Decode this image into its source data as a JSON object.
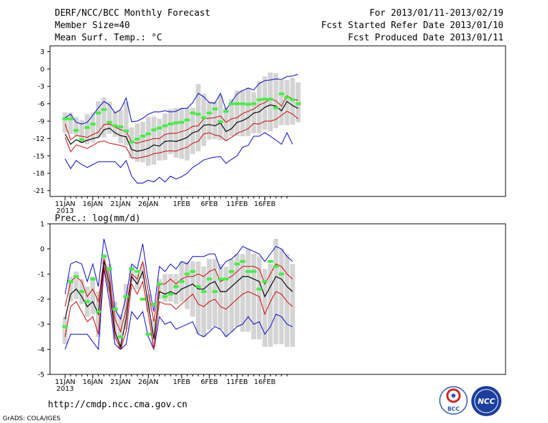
{
  "header": {
    "title": "DERF/NCC/BCC Monthly Forecast",
    "member_size": "Member Size=40",
    "panel_label": "Mean Surf. Temp.: °C",
    "period": "For 2013/01/11-2013/02/19",
    "fcst_started": "Fcst Started Refer Date 2013/01/10",
    "fcst_produced": "Fcst Produced Date 2013/01/11"
  },
  "footer": {
    "url": "http://cmdp.ncc.cma.gov.cn",
    "credit": "GrADS: COLA/IGES",
    "logo_bcc": "BCC",
    "logo_ncc": "NCC"
  },
  "colors": {
    "box": "#d4d4d4",
    "median": "#000000",
    "quartile": "#d00000",
    "envelope": "#0000cc",
    "obs": "#44ee44"
  },
  "chart_data": [
    {
      "type": "line",
      "title": "Mean Surf. Temp.: °C",
      "ylabel": "°C",
      "ylim": [
        -22,
        4
      ],
      "yticks": [
        3,
        0,
        -3,
        -6,
        -9,
        -12,
        -15,
        -18,
        -21
      ],
      "xticks": [
        {
          "day": 0,
          "label": "11JAN",
          "sub": "2013"
        },
        {
          "day": 5,
          "label": "16JAN"
        },
        {
          "day": 10,
          "label": "21JAN"
        },
        {
          "day": 15,
          "label": "26JAN"
        },
        {
          "day": 21,
          "label": "1FEB"
        },
        {
          "day": 26,
          "label": "6FEB"
        },
        {
          "day": 31,
          "label": "11FEB"
        },
        {
          "day": 36,
          "label": "16FEB"
        }
      ],
      "series": [
        {
          "name": "max",
          "values": [
            -15.5,
            -17.2,
            -15.8,
            -16.5,
            -17,
            -16.5,
            -16,
            -16,
            -16,
            -16,
            -17,
            -15.8,
            -18.5,
            -19.7,
            -19.7,
            -19.2,
            -19.5,
            -18.7,
            -19.5,
            -18.5,
            -19,
            -18.6,
            -18,
            -17,
            -16.4,
            -15.7,
            -15.4,
            -15.2,
            -15.1,
            -16.3,
            -15.6,
            -15,
            -13.5,
            -13.2,
            -11.6,
            -11.6,
            -11,
            -11.6,
            -12.3,
            -13,
            -11,
            -13
          ]
        },
        {
          "name": "q75",
          "values": [
            -11.8,
            -14.3,
            -13.1,
            -13.4,
            -13.7,
            -13.2,
            -12.6,
            -12.4,
            -12.8,
            -13,
            -13.2,
            -13.5,
            -15.3,
            -15.4,
            -15.2,
            -15,
            -14.6,
            -14.5,
            -14.2,
            -14.1,
            -14.2,
            -13.8,
            -13.5,
            -12.8,
            -12.5,
            -11.2,
            -11,
            -11.4,
            -11.6,
            -12.4,
            -11.8,
            -11.1,
            -10.7,
            -10.3,
            -9.4,
            -9.5,
            -9,
            -9,
            -8.7,
            -8,
            -7.3,
            -7.8,
            -8.6
          ]
        },
        {
          "name": "median",
          "values": [
            -11.2,
            -13,
            -12.2,
            -12.7,
            -12.3,
            -12,
            -11.8,
            -10.5,
            -10.2,
            -11,
            -11.5,
            -11.7,
            -13.9,
            -14.2,
            -14,
            -13.7,
            -13.1,
            -13.3,
            -12.5,
            -12.4,
            -12.5,
            -12.2,
            -11.8,
            -11,
            -10.7,
            -9.7,
            -9.6,
            -9.8,
            -9.3,
            -10.8,
            -10.3,
            -9.2,
            -8.9,
            -8.4,
            -7.6,
            -7.4,
            -6.6,
            -6.2,
            -6.4,
            -7.2,
            -5.6,
            -6.3,
            -6.8
          ]
        },
        {
          "name": "q25",
          "values": [
            -9.5,
            -12.2,
            -11.5,
            -11.6,
            -11.8,
            -11.3,
            -10.9,
            -9.6,
            -9.5,
            -10,
            -10.5,
            -10.7,
            -12.6,
            -12.8,
            -12.5,
            -12.3,
            -12,
            -12,
            -11.3,
            -11.1,
            -11.1,
            -10.8,
            -10.5,
            -9.9,
            -9.8,
            -8.6,
            -8.5,
            -8.4,
            -8.1,
            -9.2,
            -8.6,
            -8.4,
            -7.7,
            -7.3,
            -6.9,
            -6.2,
            -5.8,
            -5.2,
            -5.5,
            -6.4,
            -4.6,
            -5.2,
            -5.4
          ]
        },
        {
          "name": "min",
          "values": [
            -8.4,
            -7.8,
            -9.2,
            -9.5,
            -9.2,
            -8,
            -6.7,
            -5.6,
            -6.2,
            -7.6,
            -7,
            -5,
            -9.1,
            -9,
            -8.5,
            -7.8,
            -7.4,
            -7.4,
            -7.2,
            -7.4,
            -7.3,
            -6.8,
            -6.8,
            -5.8,
            -4.2,
            -4.8,
            -5.8,
            -5.9,
            -4.2,
            -7,
            -5.7,
            -4.3,
            -3.7,
            -3.3,
            -3.6,
            -2.5,
            -2,
            -1.9,
            -1.7,
            -1.8,
            -1.3,
            -1.2,
            -0.9
          ]
        },
        {
          "name": "box_low",
          "values": [
            -11,
            -11.2,
            -11.5,
            -12.8,
            -13,
            -12.7,
            -11.8,
            -11.8,
            -11.2,
            -11.7,
            -12.8,
            -13.2,
            -15.5,
            -16,
            -16.1,
            -16.7,
            -16.5,
            -15.8,
            -15.7,
            -14.7,
            -15.3,
            -15.5,
            -15.8,
            -14.7,
            -14.2,
            -13.3,
            -12.2,
            -12.1,
            -12.3,
            -12.4,
            -11.6,
            -11.6,
            -11.6,
            -11.6,
            -11.1,
            -11.1,
            -10.5,
            -10.8,
            -10.2,
            -9.7,
            -9.7,
            -9.6,
            -9.2
          ]
        },
        {
          "name": "box_high",
          "values": [
            -7.5,
            -7.5,
            -8.3,
            -8.8,
            -7.8,
            -7.5,
            -5.6,
            -4.9,
            -5.6,
            -7.3,
            -7.1,
            -5.7,
            -10.1,
            -9.4,
            -9.1,
            -8.3,
            -8.2,
            -8.6,
            -7.7,
            -6.9,
            -6.7,
            -6.7,
            -6.7,
            -6.7,
            -2.6,
            -4.3,
            -5.6,
            -5.7,
            -4.5,
            -6.7,
            -5.2,
            -3.7,
            -3.6,
            -3.2,
            -4,
            -2.1,
            -1.3,
            -0.6,
            -0.7,
            -1.9,
            -1.9,
            -1.5,
            -2.3
          ]
        },
        {
          "name": "observed",
          "values": [
            -8.6,
            -8.6,
            -10.6,
            -12.2,
            -10.1,
            -9.5,
            -7.6,
            -7,
            -9.2,
            -9.8,
            -10,
            -10.7,
            -12.6,
            -12.1,
            -11.6,
            -11.2,
            -10.5,
            -10.2,
            -9.8,
            -9.5,
            -9.3,
            -9.2,
            -8.8,
            -7.6,
            -7.8,
            -8.4,
            -7.6,
            -6.9,
            -9.1,
            -7.3,
            -6,
            -6,
            -6,
            -6.1,
            -6,
            -5.3,
            -5.2,
            -5.2,
            -6.7,
            -4.3,
            -4.9,
            -5.3,
            -6
          ]
        }
      ]
    },
    {
      "type": "line",
      "title": "Prec.: log(mm/d)",
      "ylabel": "log(mm/d)",
      "ylim": [
        -5,
        1
      ],
      "yticks": [
        1,
        0,
        -1,
        -2,
        -3,
        -4,
        -5
      ],
      "xticks": [
        {
          "day": 0,
          "label": "11JAN",
          "sub": "2013"
        },
        {
          "day": 5,
          "label": "16JAN"
        },
        {
          "day": 10,
          "label": "21JAN"
        },
        {
          "day": 15,
          "label": "26JAN"
        },
        {
          "day": 21,
          "label": "1FEB"
        },
        {
          "day": 26,
          "label": "6FEB"
        },
        {
          "day": 31,
          "label": "11FEB"
        },
        {
          "day": 36,
          "label": "16FEB"
        }
      ],
      "series": [
        {
          "name": "max",
          "values": [
            -1.8,
            -0.6,
            -0.5,
            -0.6,
            -1.3,
            -0.6,
            -1.5,
            0.4,
            -0.5,
            -2.4,
            -2.8,
            -1.9,
            -0.6,
            -0.8,
            0.2,
            -1.3,
            -2.5,
            -0.7,
            -0.9,
            -0.6,
            -0.8,
            -0.5,
            -0.6,
            -0.3,
            -0.3,
            -0.3,
            -0.2,
            -0.2,
            -0.8,
            -0.5,
            -0.4,
            -0.2,
            0.1,
            0,
            -0.1,
            -0.2,
            -0.5,
            -0.2,
            0.1,
            0,
            -0.3,
            -0.5
          ]
        },
        {
          "name": "q75",
          "values": [
            -2.3,
            -1.3,
            -1.1,
            -1.3,
            -1.9,
            -1.6,
            -2.1,
            -0.4,
            -1.1,
            -2.8,
            -3.3,
            -2.4,
            -1,
            -1.2,
            -0.5,
            -1.7,
            -2.9,
            -1.4,
            -1.4,
            -1.2,
            -1.4,
            -1.2,
            -1.1,
            -1.1,
            -1,
            -1.1,
            -0.9,
            -0.8,
            -1.3,
            -1.2,
            -1.1,
            -0.9,
            -0.7,
            -0.7,
            -0.7,
            -0.8,
            -1.4,
            -1,
            -0.6,
            -0.7,
            -1,
            -1.2
          ]
        },
        {
          "name": "median",
          "values": [
            -2.8,
            -1.8,
            -1.6,
            -1.9,
            -2.3,
            -2.1,
            -2.6,
            -0.5,
            -1.4,
            -3.3,
            -3.9,
            -2.8,
            -1.1,
            -1.4,
            -0.9,
            -2.2,
            -3.6,
            -1.7,
            -1.8,
            -1.7,
            -1.8,
            -1.6,
            -1.5,
            -1.4,
            -1.6,
            -1.6,
            -1.4,
            -1.3,
            -1.7,
            -1.7,
            -1.5,
            -1.3,
            -1.1,
            -1.1,
            -1.2,
            -1.3,
            -1.9,
            -1.5,
            -1.1,
            -1.2,
            -1.5,
            -1.7
          ]
        },
        {
          "name": "q25",
          "values": [
            -3.5,
            -2.3,
            -2.1,
            -2.5,
            -2.9,
            -2.7,
            -3.4,
            -0.7,
            -1.7,
            -3.5,
            -4,
            -3.3,
            -1.4,
            -1.8,
            -1.3,
            -2.6,
            -4,
            -2.1,
            -2.2,
            -2.2,
            -2.4,
            -2.2,
            -2,
            -1.8,
            -2.2,
            -2.3,
            -2.1,
            -2,
            -2.3,
            -2.4,
            -2.2,
            -2,
            -1.8,
            -1.7,
            -1.8,
            -1.9,
            -2.6,
            -2.1,
            -1.7,
            -1.8,
            -2.1,
            -2.3
          ]
        },
        {
          "name": "min",
          "values": [
            -4,
            -3.4,
            -3.4,
            -3.4,
            -3.4,
            -3.7,
            -4,
            -0.8,
            -2.1,
            -3.8,
            -4,
            -3.8,
            -2.5,
            -2.8,
            -2.5,
            -3.5,
            -4,
            -2.7,
            -3,
            -2.9,
            -3.2,
            -3.1,
            -3,
            -2.9,
            -3.4,
            -3.5,
            -3.3,
            -3.1,
            -3.2,
            -3.5,
            -3.3,
            -3.1,
            -3,
            -2.7,
            -3,
            -2.9,
            -3.4,
            -3.1,
            -2.6,
            -2.7,
            -3,
            -3.1
          ]
        },
        {
          "name": "box_low",
          "values": [
            -3.8,
            -2.1,
            -2,
            -2.2,
            -2.7,
            -2.6,
            -3.5,
            -0.6,
            -1.7,
            -3.6,
            -4,
            -3.2,
            -1.3,
            -1.6,
            -1.2,
            -2.5,
            -3.9,
            -2,
            -2.1,
            -2.1,
            -2.2,
            -2.1,
            -2.4,
            -2.7,
            -3.4,
            -3.5,
            -3.2,
            -3.1,
            -3.2,
            -3.5,
            -3.3,
            -3.1,
            -3.3,
            -3.3,
            -3.6,
            -3.6,
            -3.9,
            -3.9,
            -3.8,
            -3.8,
            -3.9,
            -3.9
          ]
        },
        {
          "name": "box_high",
          "values": [
            -2.7,
            -1.1,
            -0.9,
            -1.2,
            -1.5,
            -1.1,
            -1.7,
            -0.2,
            -0.6,
            -2.1,
            -2.6,
            -1.4,
            -0.7,
            -1,
            -0.6,
            -1.8,
            -2.8,
            -1.2,
            -1,
            -1,
            -1,
            -0.5,
            -0.5,
            -0.5,
            -0.5,
            -0.7,
            -0.4,
            -0.4,
            -0.6,
            -0.7,
            -0.4,
            -0.2,
            -0.2,
            0,
            -0.2,
            -0.3,
            -0.8,
            -0.6,
            0.4,
            0,
            -0.2,
            -0.6
          ]
        },
        {
          "name": "observed",
          "values": [
            -3.1,
            -1.3,
            -1.1,
            -1.7,
            -2.1,
            -1.2,
            -2.5,
            -0.3,
            -0.8,
            -2.4,
            -3.5,
            -1.9,
            -0.8,
            -0.9,
            -2,
            -3.4,
            -2.2,
            -1.4,
            -1.9,
            -1.8,
            -1.5,
            -1.3,
            -1,
            -0.9,
            -1.5,
            -1.7,
            -1.2,
            -1.7,
            -1.2,
            -1.2,
            -0.9,
            -0.6,
            -0.5,
            -0.9,
            -0.9,
            -1.6,
            -1.3,
            -0.5,
            -0.7,
            -1
          ]
        }
      ]
    }
  ]
}
